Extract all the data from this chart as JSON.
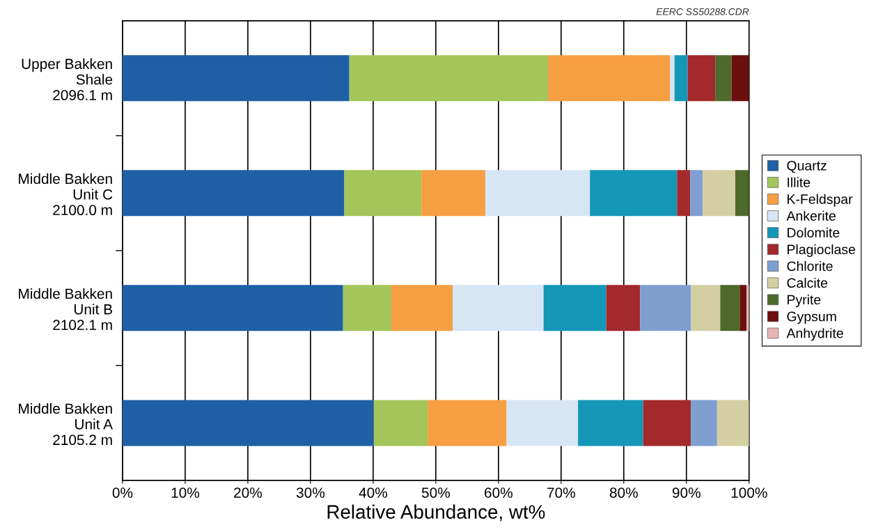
{
  "chart_data": {
    "type": "bar",
    "orientation": "horizontal",
    "stacked": true,
    "categories": [
      "Upper Bakken\nShale\n2096.1 m",
      "Middle Bakken\nUnit C\n2100.0 m",
      "Middle Bakken\nUnit B\n2102.1 m",
      "Middle Bakken\nUnit A\n2105.2 m"
    ],
    "series": [
      {
        "name": "Quartz",
        "color": "#1f5fa6",
        "values": [
          36.2,
          35.4,
          35.2,
          40.1
        ]
      },
      {
        "name": "Illite",
        "color": "#a4c65a",
        "values": [
          31.7,
          12.3,
          7.7,
          8.6
        ]
      },
      {
        "name": "K-Feldspar",
        "color": "#f79f43",
        "values": [
          19.5,
          10.2,
          9.8,
          12.6
        ]
      },
      {
        "name": "Ankerite",
        "color": "#d6e6f5",
        "values": [
          0.7,
          16.7,
          14.5,
          11.4
        ]
      },
      {
        "name": "Dolomite",
        "color": "#1597b8",
        "values": [
          2.1,
          13.9,
          10.0,
          10.4
        ]
      },
      {
        "name": "Plagioclase",
        "color": "#a3292b",
        "values": [
          4.4,
          2.1,
          5.4,
          7.6
        ]
      },
      {
        "name": "Chlorite",
        "color": "#7f9fd0",
        "values": [
          0,
          2.0,
          8.1,
          4.2
        ]
      },
      {
        "name": "Calcite",
        "color": "#d4cfa3",
        "values": [
          0,
          5.2,
          4.7,
          5.1
        ]
      },
      {
        "name": "Pyrite",
        "color": "#4e6a2a",
        "values": [
          2.6,
          2.2,
          3.1,
          0
        ]
      },
      {
        "name": "Gypsum",
        "color": "#6b0f0f",
        "values": [
          2.8,
          0,
          1.1,
          0
        ]
      },
      {
        "name": "Anhydrite",
        "color": "#e8b4b4",
        "values": [
          0,
          0,
          0.4,
          0
        ]
      }
    ],
    "xlim": [
      0,
      100
    ],
    "xticks": [
      {
        "value": 0,
        "label": "0%"
      },
      {
        "value": 10,
        "label": "10%"
      },
      {
        "value": 20,
        "label": "20%"
      },
      {
        "value": 30,
        "label": "30%"
      },
      {
        "value": 40,
        "label": "40%"
      },
      {
        "value": 50,
        "label": "50%"
      },
      {
        "value": 60,
        "label": "60%"
      },
      {
        "value": 70,
        "label": "70%"
      },
      {
        "value": 80,
        "label": "80%"
      },
      {
        "value": 90,
        "label": "90%"
      },
      {
        "value": 100,
        "label": "100%"
      }
    ],
    "xlabel": "Relative Abundance, wt%",
    "grid": "x",
    "legend": "right",
    "annotations": [
      "EERC SS50288.CDR"
    ]
  }
}
